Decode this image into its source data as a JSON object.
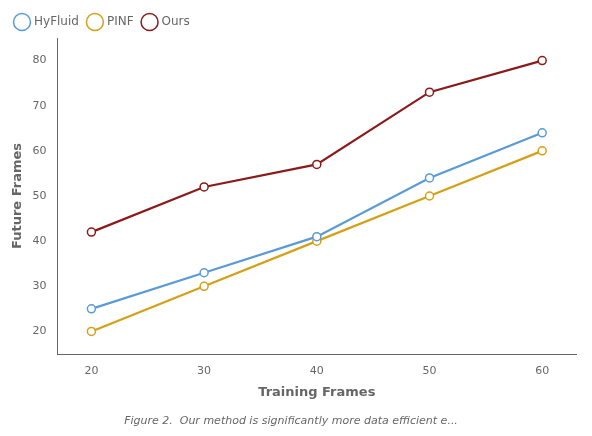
{
  "chart_data": {
    "type": "line",
    "x": [
      20,
      30,
      40,
      50,
      60
    ],
    "series": [
      {
        "name": "HyFluid",
        "color": "#5b9bd5",
        "values": [
          25,
          33,
          41,
          54,
          64
        ],
        "marker": "circle",
        "line_style": "solid"
      },
      {
        "name": "PINF",
        "color": "#d4a017",
        "values": [
          20,
          30,
          40,
          50,
          60
        ],
        "marker": "circle",
        "line_style": "solid"
      },
      {
        "name": "Ours",
        "color": "#8b1a1a",
        "values": [
          42,
          52,
          57,
          73,
          80
        ],
        "marker": "circle",
        "line_style": "solid"
      }
    ],
    "xlabel": "Training Frames",
    "ylabel": "Future Frames",
    "xlim": [
      17,
      63
    ],
    "ylim": [
      15,
      85
    ],
    "xticks": [
      20,
      30,
      40,
      50,
      60
    ],
    "yticks": [
      20,
      30,
      40,
      50,
      60,
      70,
      80
    ],
    "legend": "upper left",
    "grid": false,
    "caption": "Figure 2.  Our method is significantly more data efficient e..."
  }
}
